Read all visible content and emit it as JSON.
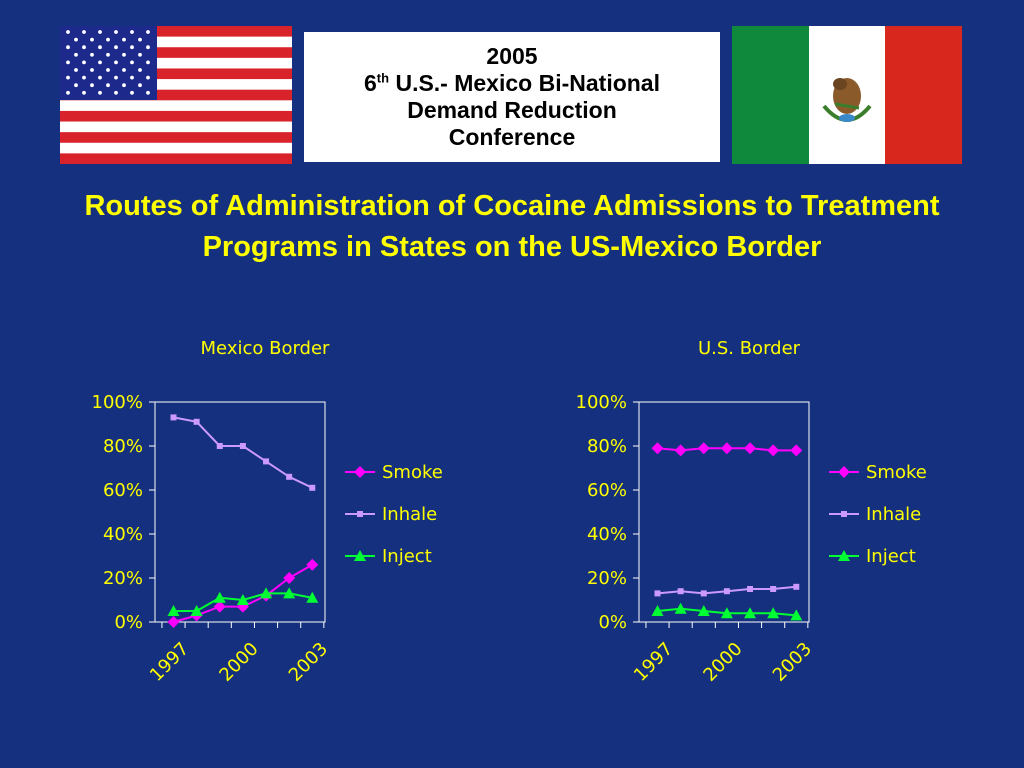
{
  "conference": {
    "year": "2005",
    "ordinal": "6",
    "ordinal_suffix": "th",
    "line1_rest": " U.S.- Mexico Bi-National",
    "line2": "Demand Reduction",
    "line3": "Conference"
  },
  "title": "Routes of Administration of Cocaine Admissions to Treatment Programs in States on the US-Mexico Border",
  "flags": {
    "left": "us-flag",
    "right": "mexico-flag"
  },
  "colors": {
    "background": "#15307e",
    "text": "#ffff00",
    "smoke": "#ff00ff",
    "inhale": "#cc99ff",
    "inject": "#00ff33"
  },
  "chart_data": [
    {
      "type": "line",
      "title": "Mexico Border",
      "x": [
        1997,
        1998,
        1999,
        2000,
        2001,
        2002,
        2003
      ],
      "x_tick_labels": [
        "1997",
        "2000",
        "2003"
      ],
      "ylim": [
        0,
        100
      ],
      "y_ticks": [
        "0%",
        "20%",
        "40%",
        "60%",
        "80%",
        "100%"
      ],
      "legend_position": "right",
      "series": [
        {
          "name": "Smoke",
          "marker": "diamond",
          "values": [
            0,
            3,
            7,
            7,
            12,
            20,
            26
          ]
        },
        {
          "name": "Inhale",
          "marker": "square",
          "values": [
            93,
            91,
            80,
            80,
            73,
            66,
            61
          ]
        },
        {
          "name": "Inject",
          "marker": "triangle",
          "values": [
            5,
            5,
            11,
            10,
            13,
            13,
            11
          ]
        }
      ]
    },
    {
      "type": "line",
      "title": "U.S. Border",
      "x": [
        1997,
        1998,
        1999,
        2000,
        2001,
        2002,
        2003
      ],
      "x_tick_labels": [
        "1997",
        "2000",
        "2003"
      ],
      "ylim": [
        0,
        100
      ],
      "y_ticks": [
        "0%",
        "20%",
        "40%",
        "60%",
        "80%",
        "100%"
      ],
      "legend_position": "right",
      "series": [
        {
          "name": "Smoke",
          "marker": "diamond",
          "values": [
            79,
            78,
            79,
            79,
            79,
            78,
            78
          ]
        },
        {
          "name": "Inhale",
          "marker": "square",
          "values": [
            13,
            14,
            13,
            14,
            15,
            15,
            16
          ]
        },
        {
          "name": "Inject",
          "marker": "triangle",
          "values": [
            5,
            6,
            5,
            4,
            4,
            4,
            3
          ]
        }
      ]
    }
  ]
}
